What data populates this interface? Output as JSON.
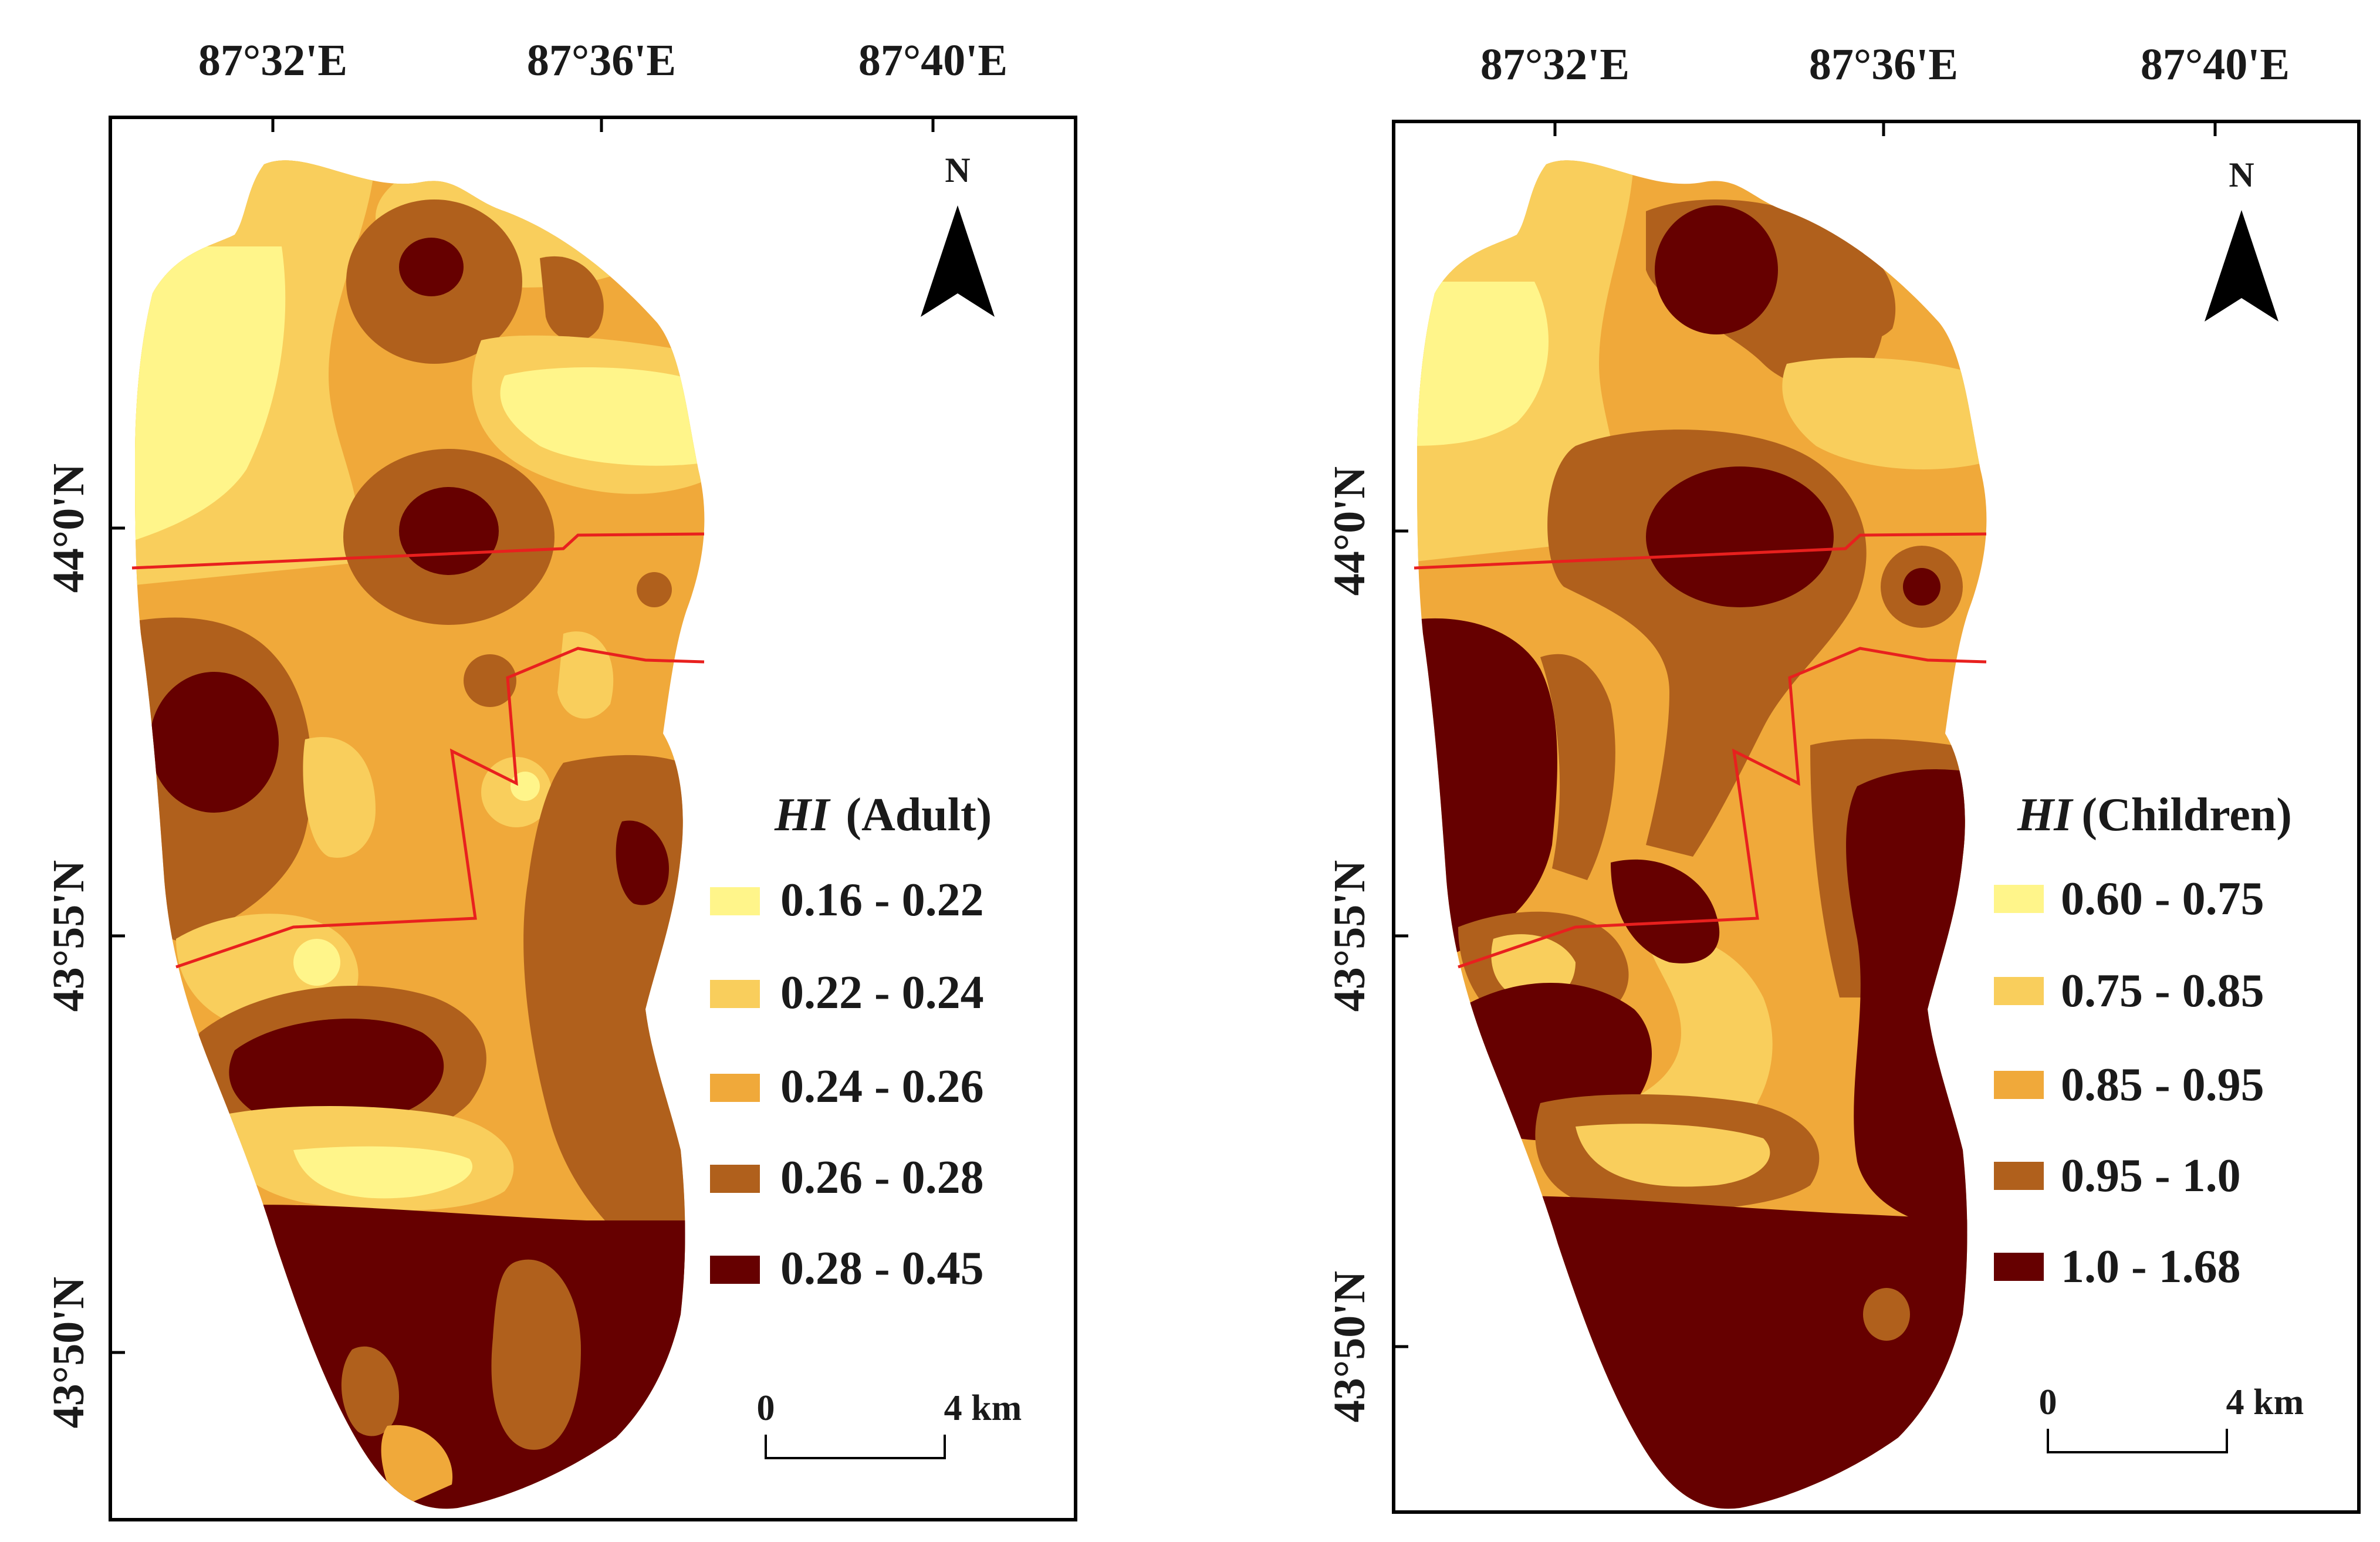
{
  "colors": {
    "class1": "#FFF58A",
    "class2": "#F9CE5C",
    "class3": "#F0A93A",
    "class4": "#B0601C",
    "class5": "#660000",
    "boundary": "#E8201E",
    "frame": "#000000"
  },
  "panels": [
    {
      "id": "adult",
      "top_labels": [
        "87°32'E",
        "87°36'E",
        "87°40'E"
      ],
      "side_labels": [
        "44°0'N",
        "43°55'N",
        "43°50'N"
      ],
      "north_label": "N",
      "legend": {
        "title_italic": "HI",
        "title_rest": "(Adult)",
        "items": [
          "0.16 - 0.22",
          "0.22 - 0.24",
          "0.24 - 0.26",
          "0.26 - 0.28",
          "0.28 - 0.45"
        ]
      },
      "scale": {
        "start": "0",
        "end": "4 km"
      }
    },
    {
      "id": "children",
      "top_labels": [
        "87°32'E",
        "87°36'E",
        "87°40'E"
      ],
      "side_labels": [
        "44°0'N",
        "43°55'N",
        "43°50'N"
      ],
      "north_label": "N",
      "legend": {
        "title_italic": "HI",
        "title_rest": "(Children)",
        "items": [
          "0.60 - 0.75",
          "0.75 - 0.85",
          "0.85 - 0.95",
          "0.95 - 1.0",
          "1.0 - 1.68"
        ]
      },
      "scale": {
        "start": "0",
        "end": "4 km"
      }
    }
  ]
}
